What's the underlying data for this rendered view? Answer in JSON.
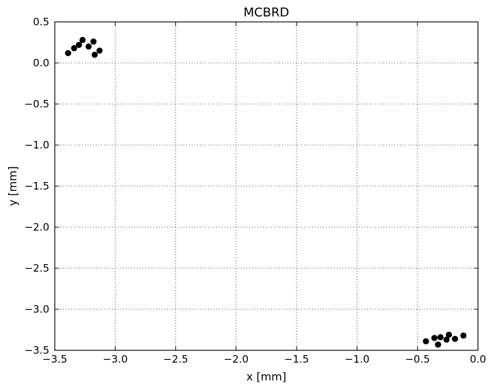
{
  "chart_data": {
    "type": "scatter",
    "title": "MCBRD",
    "xlabel": "x [mm]",
    "ylabel": "y [mm]",
    "xlim": [
      -3.5,
      0.0
    ],
    "ylim": [
      -3.5,
      0.5
    ],
    "xticks": [
      -3.5,
      -3.0,
      -2.5,
      -2.0,
      -1.5,
      -1.0,
      -0.5,
      0.0
    ],
    "yticks": [
      -3.5,
      -3.0,
      -2.5,
      -2.0,
      -1.5,
      -1.0,
      -0.5,
      0.0,
      0.5
    ],
    "xtick_labels": [
      "−3.5",
      "−3.0",
      "−2.5",
      "−2.0",
      "−1.5",
      "−1.0",
      "−0.5",
      "0.0"
    ],
    "ytick_labels": [
      "−3.5",
      "−3.0",
      "−2.5",
      "−2.0",
      "−1.5",
      "−1.0",
      "−0.5",
      "0.0",
      "0.5"
    ],
    "grid": true,
    "marker_color": "#000000",
    "points": [
      {
        "x": -3.39,
        "y": 0.12
      },
      {
        "x": -3.34,
        "y": 0.18
      },
      {
        "x": -3.3,
        "y": 0.22
      },
      {
        "x": -3.27,
        "y": 0.28
      },
      {
        "x": -3.22,
        "y": 0.2
      },
      {
        "x": -3.18,
        "y": 0.26
      },
      {
        "x": -3.17,
        "y": 0.1
      },
      {
        "x": -3.13,
        "y": 0.15
      },
      {
        "x": -0.43,
        "y": -3.39
      },
      {
        "x": -0.36,
        "y": -3.35
      },
      {
        "x": -0.33,
        "y": -3.43
      },
      {
        "x": -0.31,
        "y": -3.34
      },
      {
        "x": -0.26,
        "y": -3.37
      },
      {
        "x": -0.24,
        "y": -3.31
      },
      {
        "x": -0.19,
        "y": -3.36
      },
      {
        "x": -0.12,
        "y": -3.32
      }
    ]
  }
}
